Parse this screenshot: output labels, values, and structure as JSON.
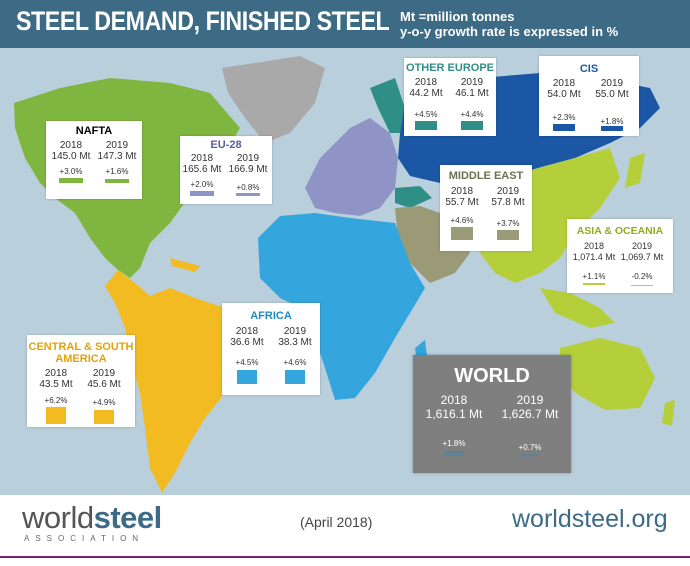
{
  "header": {
    "title": "STEEL DEMAND, FINISHED STEEL",
    "unit_note": "Mt =million tonnes",
    "growth_note": "y-o-y growth rate is expressed in %"
  },
  "regions": {
    "nafta": {
      "name": "NAFTA",
      "color": "#7fb640",
      "y1": "2018",
      "y2": "2019",
      "v1": "145.0 Mt",
      "v2": "147.3 Mt",
      "g1": "+3.0%",
      "g2": "+1.6%"
    },
    "eu28": {
      "name": "EU-28",
      "color": "#8f93c6",
      "y1": "2018",
      "y2": "2019",
      "v1": "165.6 Mt",
      "v2": "166.9 Mt",
      "g1": "+2.0%",
      "g2": "+0.8%"
    },
    "other_europe": {
      "name": "OTHER EUROPE",
      "color": "#2f8f87",
      "y1": "2018",
      "y2": "2019",
      "v1": "44.2 Mt",
      "v2": "46.1 Mt",
      "g1": "+4.5%",
      "g2": "+4.4%"
    },
    "cis": {
      "name": "CIS",
      "color": "#1b57a5",
      "y1": "2018",
      "y2": "2019",
      "v1": "54.0 Mt",
      "v2": "55.0 Mt",
      "g1": "+2.3%",
      "g2": "+1.8%"
    },
    "middle_east": {
      "name": "MIDDLE EAST",
      "color": "#9a9a77",
      "y1": "2018",
      "y2": "2019",
      "v1": "55.7 Mt",
      "v2": "57.8 Mt",
      "g1": "+4.6%",
      "g2": "+3.7%"
    },
    "asia": {
      "name": "ASIA & OCEANIA",
      "color": "#b5cf3b",
      "y1": "2018",
      "y2": "2019",
      "v1": "1,071.4 Mt",
      "v2": "1,069.7 Mt",
      "g1": "+1.1%",
      "g2": "-0.2%"
    },
    "africa": {
      "name": "AFRICA",
      "color": "#34a6dd",
      "y1": "2018",
      "y2": "2019",
      "v1": "36.6 Mt",
      "v2": "38.3 Mt",
      "g1": "+4.5%",
      "g2": "+4.6%"
    },
    "csa": {
      "name_line1": "CENTRAL & SOUTH",
      "name_line2": "AMERICA",
      "color": "#f2bb22",
      "y1": "2018",
      "y2": "2019",
      "v1": "43.5 Mt",
      "v2": "45.6 Mt",
      "g1": "+6.2%",
      "g2": "+4.9%"
    },
    "world": {
      "name": "WORLD",
      "color": "#5f8396",
      "y1": "2018",
      "y2": "2019",
      "v1": "1,616.1 Mt",
      "v2": "1,626.7 Mt",
      "g1": "+1.8%",
      "g2": "+0.7%"
    }
  },
  "footer": {
    "logo_bold": "steel",
    "logo_plain": "world",
    "logo_sub": "ASSOCIATION",
    "date": "(April 2018)",
    "site": "worldsteel.org"
  }
}
